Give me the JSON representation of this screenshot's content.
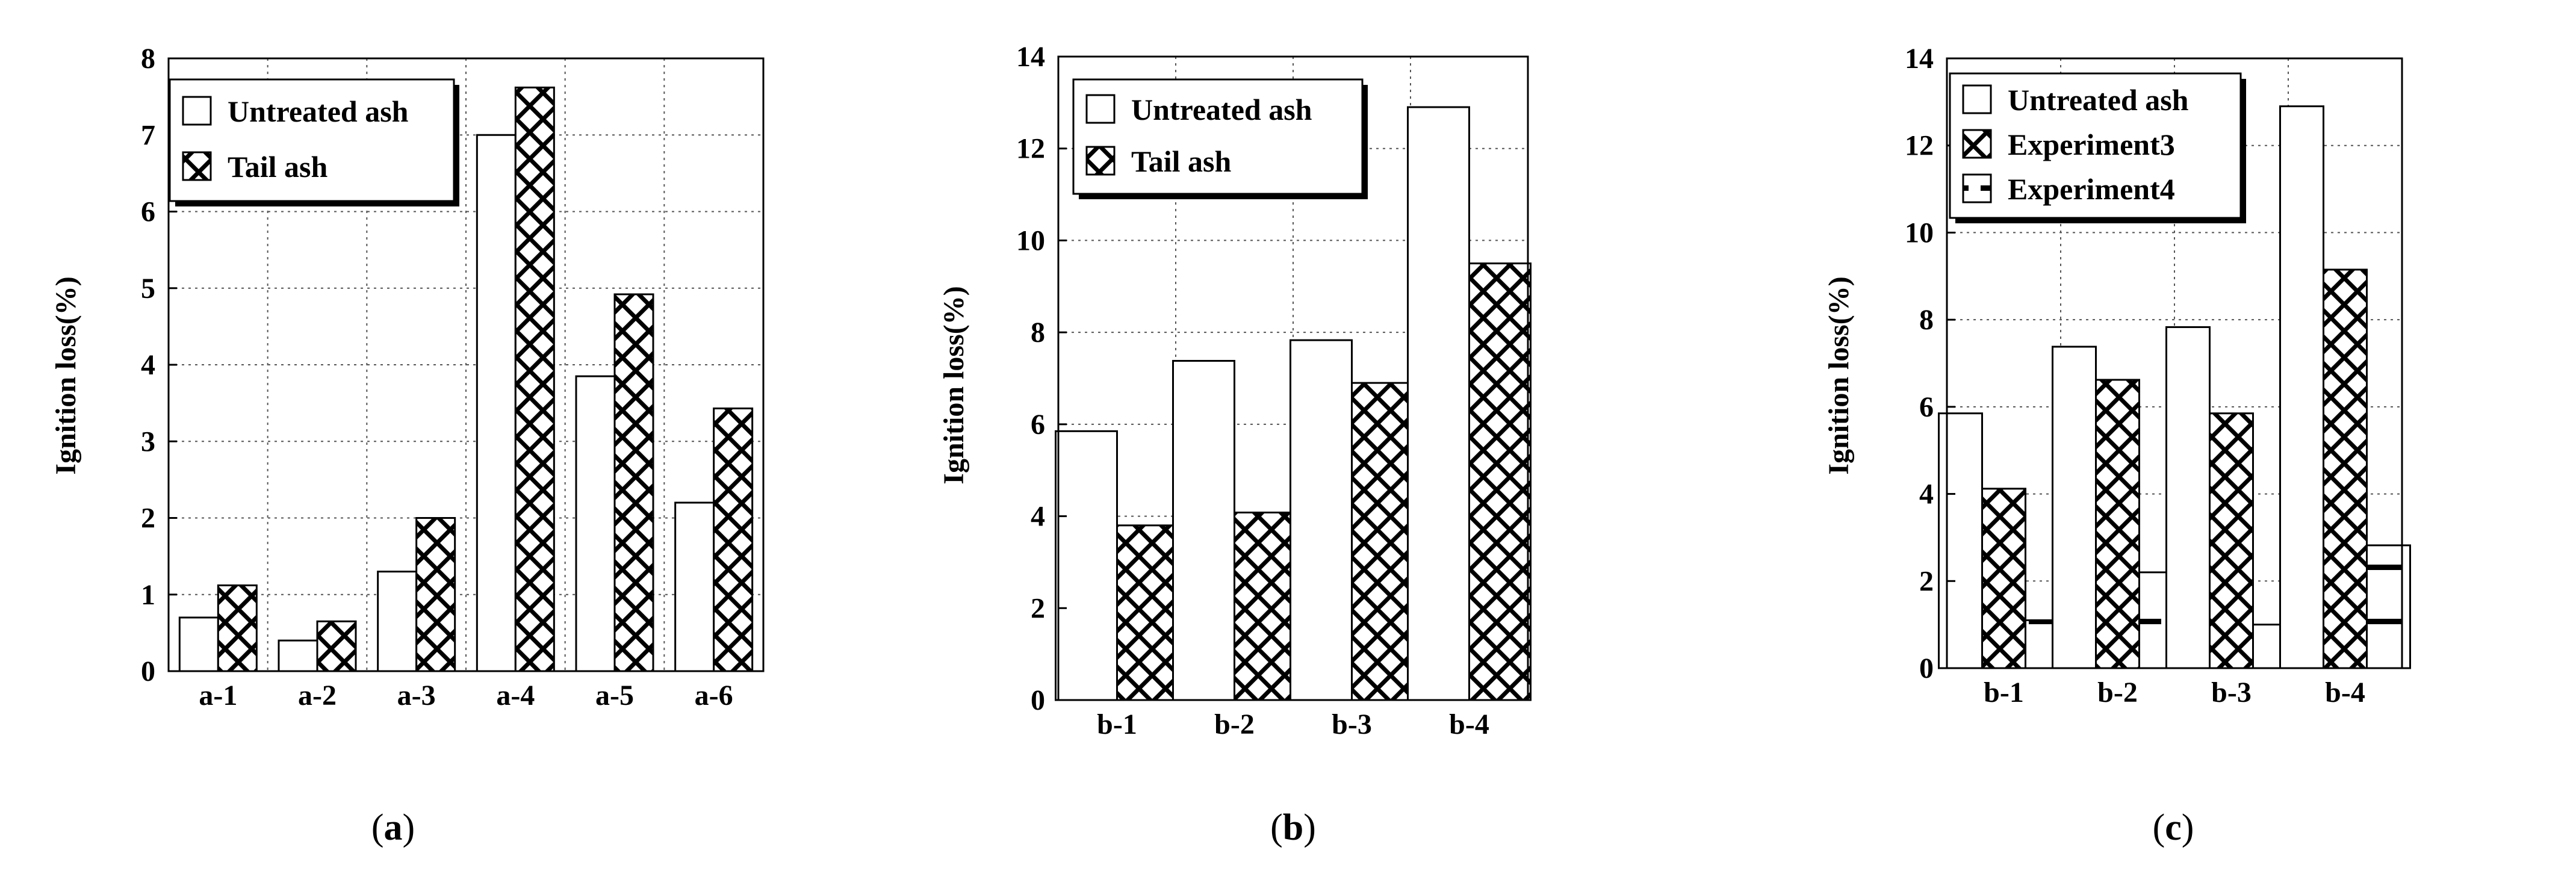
{
  "chart_data": [
    {
      "id": "a",
      "type": "bar",
      "caption": "(a)",
      "caption_parts": [
        "(",
        "a",
        ")"
      ],
      "ylabel": "Ignition loss(%)",
      "xlabel": "",
      "ylim": [
        0,
        8
      ],
      "yticks": [
        0,
        1,
        2,
        3,
        4,
        5,
        6,
        7,
        8
      ],
      "grid": "dotted",
      "legend_position": "top-left",
      "categories": [
        "a-1",
        "a-2",
        "a-3",
        "a-4",
        "a-5",
        "a-6"
      ],
      "series": [
        {
          "name": "Untreated ash",
          "pattern": "none",
          "values": [
            0.7,
            0.4,
            1.3,
            7.0,
            3.85,
            2.2
          ]
        },
        {
          "name": "Tail ash",
          "pattern": "crosshatch",
          "values": [
            1.12,
            0.65,
            2.0,
            7.62,
            4.92,
            3.43
          ]
        }
      ]
    },
    {
      "id": "b",
      "type": "bar",
      "caption": "(b)",
      "caption_parts": [
        "(",
        "b",
        ")"
      ],
      "ylabel": "Ignition loss(%)",
      "xlabel": "",
      "ylim": [
        0,
        14
      ],
      "yticks": [
        0,
        2,
        4,
        6,
        8,
        10,
        12,
        14
      ],
      "grid": "dotted",
      "legend_position": "top-left",
      "categories": [
        "b-1",
        "b-2",
        "b-3",
        "b-4"
      ],
      "series": [
        {
          "name": "Untreated ash",
          "pattern": "none",
          "values": [
            5.85,
            7.38,
            7.83,
            12.9
          ]
        },
        {
          "name": "Tail ash",
          "pattern": "crosshatch",
          "values": [
            3.8,
            4.08,
            6.9,
            9.5
          ]
        }
      ]
    },
    {
      "id": "c",
      "type": "bar",
      "caption": "(c)",
      "caption_parts": [
        "(",
        "c",
        ")"
      ],
      "ylabel": "Ignition loss(%)",
      "xlabel": "",
      "ylim": [
        0,
        14
      ],
      "yticks": [
        0,
        2,
        4,
        6,
        8,
        10,
        12,
        14
      ],
      "grid": "dotted",
      "legend_position": "top-left",
      "categories": [
        "b-1",
        "b-2",
        "b-3",
        "b-4"
      ],
      "series": [
        {
          "name": "Untreated ash",
          "pattern": "none",
          "values": [
            5.85,
            7.38,
            7.83,
            12.9
          ]
        },
        {
          "name": "Experiment3",
          "pattern": "crosshatch",
          "values": [
            4.12,
            6.62,
            5.85,
            9.15
          ]
        },
        {
          "name": "Experiment4",
          "pattern": "horizontal-dashes",
          "values": [
            1.1,
            2.2,
            1.0,
            2.82
          ]
        }
      ]
    }
  ],
  "colors": {
    "ink": "#000000",
    "fill": "#ffffff",
    "grid": "#555555"
  }
}
